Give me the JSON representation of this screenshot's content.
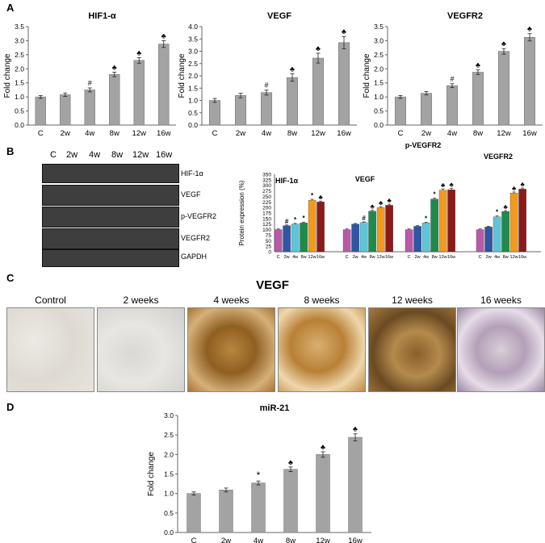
{
  "panel_labels": {
    "a": "A",
    "b": "B",
    "c": "C",
    "d": "D"
  },
  "colors": {
    "bar_gray": "#a3a3a3",
    "bar_border": "#7a7a7a",
    "western_series": [
      "#b85aa8",
      "#2f55a4",
      "#5fc4d8",
      "#1e8a4c",
      "#f29a1e",
      "#8b1a1a"
    ]
  },
  "chart_data": [
    {
      "type": "bar",
      "title": "HIF1-α",
      "ylabel": "Fold change",
      "categories": [
        "C",
        "2w",
        "4w",
        "8w",
        "12w",
        "16w"
      ],
      "values": [
        1.0,
        1.08,
        1.25,
        1.8,
        2.3,
        2.88
      ],
      "errors": [
        0.05,
        0.06,
        0.07,
        0.08,
        0.1,
        0.12
      ],
      "markers": [
        "",
        "",
        "#",
        "♣",
        "♣",
        "♣"
      ],
      "ylim": [
        0,
        3.5
      ],
      "yticks": [
        "0.0",
        "0.5",
        "1.0",
        "1.5",
        "2.0",
        "2.5",
        "3.0",
        "3.5"
      ]
    },
    {
      "type": "bar",
      "title": "VEGF",
      "ylabel": "Fold change",
      "categories": [
        "C",
        "2w",
        "4w",
        "8w",
        "12w",
        "16w"
      ],
      "values": [
        1.0,
        1.2,
        1.32,
        1.93,
        2.72,
        3.35
      ],
      "errors": [
        0.08,
        0.09,
        0.1,
        0.15,
        0.2,
        0.25
      ],
      "markers": [
        "",
        "",
        "#",
        "♣",
        "♣",
        "♣"
      ],
      "ylim": [
        0,
        4.0
      ],
      "yticks": [
        "0.0",
        "0.5",
        "1.0",
        "1.5",
        "2.0",
        "2.5",
        "3.0",
        "3.5",
        "4.0"
      ]
    },
    {
      "type": "bar",
      "title": "VEGFR2",
      "ylabel": "Fold change",
      "categories": [
        "C",
        "2w",
        "4w",
        "8w",
        "12w",
        "16w"
      ],
      "values": [
        1.0,
        1.13,
        1.4,
        1.88,
        2.62,
        3.12
      ],
      "errors": [
        0.05,
        0.06,
        0.07,
        0.08,
        0.1,
        0.13
      ],
      "markers": [
        "",
        "",
        "#",
        "♣",
        "♣",
        "♣"
      ],
      "ylim": [
        0,
        3.5
      ],
      "yticks": [
        "0.0",
        "0.5",
        "1.0",
        "1.5",
        "2.0",
        "2.5",
        "3.0",
        "3.5"
      ]
    },
    {
      "type": "bar",
      "ylabel": "Protein expression (%)",
      "groups": [
        "HIF-1α",
        "VEGF",
        "p-VEGFR2",
        "VEGFR2"
      ],
      "categories": [
        "C",
        "2w",
        "4w",
        "8w",
        "12w",
        "16w"
      ],
      "series": [
        {
          "group": "HIF-1α",
          "values": [
            100,
            118,
            125,
            130,
            233,
            225
          ],
          "errors": [
            3,
            3,
            3,
            4,
            4,
            4
          ],
          "markers": [
            "",
            "#",
            "*",
            "*",
            "*",
            "♣"
          ]
        },
        {
          "group": "VEGF",
          "values": [
            100,
            125,
            132,
            183,
            200,
            210
          ],
          "errors": [
            3,
            3,
            3,
            4,
            4,
            5
          ],
          "markers": [
            "",
            "",
            "#",
            "♣",
            "♣",
            "♣"
          ]
        },
        {
          "group": "p-VEGFR2",
          "values": [
            100,
            115,
            130,
            238,
            278,
            280
          ],
          "errors": [
            3,
            3,
            3,
            4,
            6,
            6
          ],
          "markers": [
            "",
            "",
            "*",
            "*",
            "♣",
            "♣"
          ]
        },
        {
          "group": "VEGFR2",
          "values": [
            100,
            112,
            158,
            182,
            265,
            283
          ],
          "errors": [
            3,
            3,
            4,
            4,
            5,
            5
          ],
          "markers": [
            "",
            "",
            "*",
            "♣",
            "♣",
            "♣"
          ]
        }
      ],
      "ylim": [
        0,
        350
      ],
      "yticks": [
        "0",
        "25",
        "50",
        "75",
        "100",
        "125",
        "150",
        "175",
        "200",
        "225",
        "250",
        "275",
        "300",
        "325",
        "350"
      ]
    },
    {
      "type": "bar",
      "title": "miR-21",
      "ylabel": "Fold change",
      "categories": [
        "C",
        "2w",
        "4w",
        "8w",
        "12w",
        "16w"
      ],
      "values": [
        1.0,
        1.09,
        1.27,
        1.62,
        2.0,
        2.44
      ],
      "errors": [
        0.04,
        0.05,
        0.05,
        0.06,
        0.07,
        0.09
      ],
      "markers": [
        "",
        "",
        "*",
        "♣",
        "♣",
        "♣"
      ],
      "ylim": [
        0,
        3.0
      ],
      "yticks": [
        "0.0",
        "0.5",
        "1.0",
        "1.5",
        "2.0",
        "2.5",
        "3.0"
      ]
    }
  ],
  "western_blot": {
    "lanes": [
      "C",
      "2w",
      "4w",
      "8w",
      "12w",
      "16w"
    ],
    "proteins": [
      "HIF-1α",
      "VEGF",
      "p-VEGFR2",
      "VEGFR2",
      "GAPDH"
    ]
  },
  "panel_c": {
    "title": "VEGF",
    "images": [
      "Control",
      "2 weeks",
      "4 weeks",
      "8 weeks",
      "12 weeks",
      "16 weeks"
    ]
  }
}
